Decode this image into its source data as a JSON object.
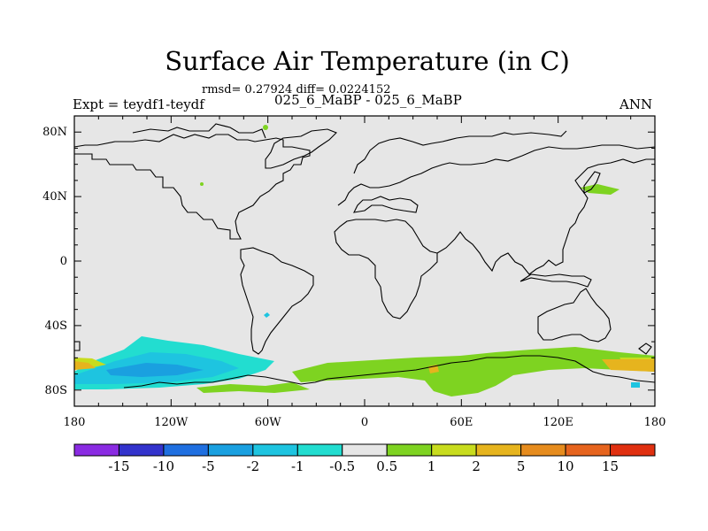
{
  "title": "Surface Air Temperature (in C)",
  "stats": "rmsd= 0.27924 diff= 0.0224152",
  "left_label": "Expt = teydf1-teydf",
  "center_label": "025_6_MaBP - 025_6_MaBP",
  "right_label": "ANN",
  "map": {
    "background_color": "#e6e6e6",
    "coastline_color": "#000000",
    "lat_ticks": [
      "80N",
      "40N",
      "0",
      "40S",
      "80S"
    ],
    "lon_ticks": [
      "180",
      "120W",
      "60W",
      "0",
      "60E",
      "120E",
      "180"
    ]
  },
  "colorbar": {
    "labels": [
      "-15",
      "-10",
      "-5",
      "-2",
      "-1",
      "-0.5",
      "0.5",
      "1",
      "2",
      "5",
      "10",
      "15"
    ],
    "colors": [
      "#8a2be2",
      "#3333cc",
      "#1f6fe0",
      "#1aa0e0",
      "#1ec4e0",
      "#22ddd0",
      "#e6e6e6",
      "#7ed321",
      "#c8dc1e",
      "#e6b41e",
      "#e68c1e",
      "#e6641e",
      "#e03010"
    ]
  }
}
